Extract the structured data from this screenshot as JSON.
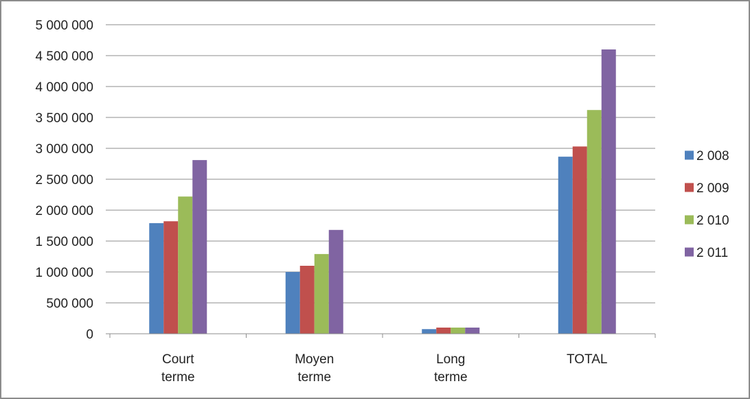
{
  "chart_data": {
    "type": "bar",
    "title": "",
    "xlabel": "",
    "ylabel": "",
    "categories": [
      [
        "Court",
        "terme"
      ],
      [
        "Moyen",
        "terme"
      ],
      [
        "Long",
        "terme"
      ],
      [
        "TOTAL"
      ]
    ],
    "series": [
      {
        "name": "2 008",
        "color": "#4f81bd",
        "values": [
          1790000,
          1000000,
          75000,
          2865000
        ]
      },
      {
        "name": "2 009",
        "color": "#c0504d",
        "values": [
          1820000,
          1100000,
          100000,
          3030000
        ]
      },
      {
        "name": "2 010",
        "color": "#9bbb59",
        "values": [
          2220000,
          1290000,
          100000,
          3620000
        ]
      },
      {
        "name": "2 011",
        "color": "#8064a2",
        "values": [
          2810000,
          1680000,
          100000,
          4600000
        ]
      }
    ],
    "ylim": [
      0,
      5000000
    ],
    "yticks": [
      0,
      500000,
      1000000,
      1500000,
      2000000,
      2500000,
      3000000,
      3500000,
      4000000,
      4500000,
      5000000
    ],
    "ytick_labels": [
      "0",
      "500 000",
      "1 000 000",
      "1 500 000",
      "2 000 000",
      "2 500 000",
      "3 000 000",
      "3 500 000",
      "4 000 000",
      "4 500 000",
      "5 000 000"
    ],
    "grid": true,
    "legend_position": "right"
  }
}
